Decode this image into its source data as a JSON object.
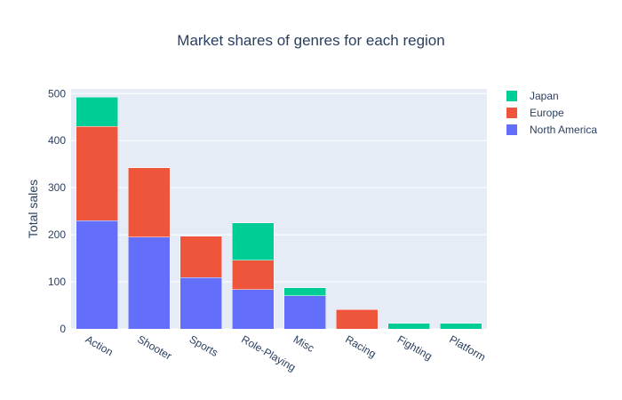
{
  "chart_data": {
    "type": "bar",
    "stacked": true,
    "title": "Market shares of genres for each region",
    "xlabel": "",
    "ylabel": "Total sales",
    "ylim": [
      0,
      510
    ],
    "yticks": [
      0,
      100,
      200,
      300,
      400,
      500
    ],
    "grid": true,
    "legend_position": "top-right",
    "categories": [
      "Action",
      "Shooter",
      "Sports",
      "Role-Playing",
      "Misc",
      "Racing",
      "Fighting",
      "Platform"
    ],
    "series": [
      {
        "name": "North America",
        "color": "#636efa",
        "values": [
          230,
          195,
          109,
          84,
          70,
          0,
          0,
          0
        ]
      },
      {
        "name": "Europe",
        "color": "#ef553b",
        "values": [
          200,
          147,
          88,
          62,
          0,
          41,
          0,
          0
        ]
      },
      {
        "name": "Japan",
        "color": "#00cc96",
        "values": [
          63,
          0,
          0,
          79,
          17,
          0,
          12,
          12
        ]
      }
    ],
    "legend_order": [
      "Japan",
      "Europe",
      "North America"
    ],
    "plot_background": "#e5ecf6",
    "grid_color": "#ffffff"
  }
}
